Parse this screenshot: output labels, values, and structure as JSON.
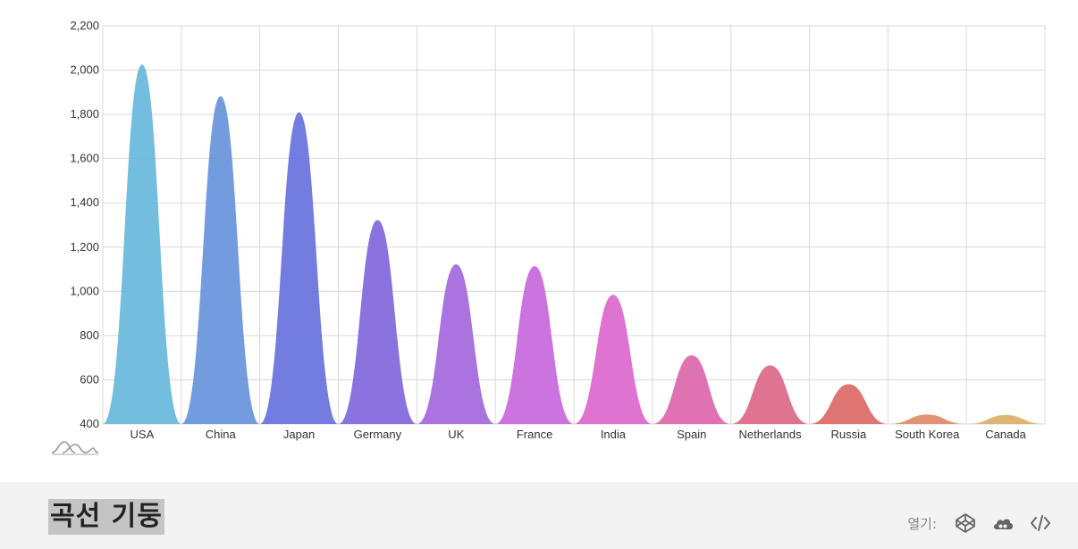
{
  "chart_data": {
    "type": "area",
    "categories": [
      "USA",
      "China",
      "Japan",
      "Germany",
      "UK",
      "France",
      "India",
      "Spain",
      "Netherlands",
      "Russia",
      "South Korea",
      "Canada"
    ],
    "values": [
      2025,
      1882,
      1809,
      1322,
      1122,
      1114,
      984,
      711,
      665,
      580,
      443,
      441
    ],
    "ylim": [
      400,
      2200
    ],
    "yticks": [
      "400",
      "600",
      "800",
      "1,000",
      "1,200",
      "1,400",
      "1,600",
      "1,800",
      "2,000",
      "2,200"
    ],
    "grid": true,
    "colors": [
      "#67b7dc",
      "#6794dc",
      "#6771dc",
      "#8067dc",
      "#a367dc",
      "#c767dc",
      "#dc67ce",
      "#dc67ab",
      "#dc6788",
      "#dc6967",
      "#dc8c67",
      "#dcaf67"
    ]
  },
  "footer": {
    "title": "곡선 기둥",
    "open_label": "열기:",
    "icons": [
      "codepen-icon",
      "cloud-icon",
      "code-icon"
    ]
  }
}
